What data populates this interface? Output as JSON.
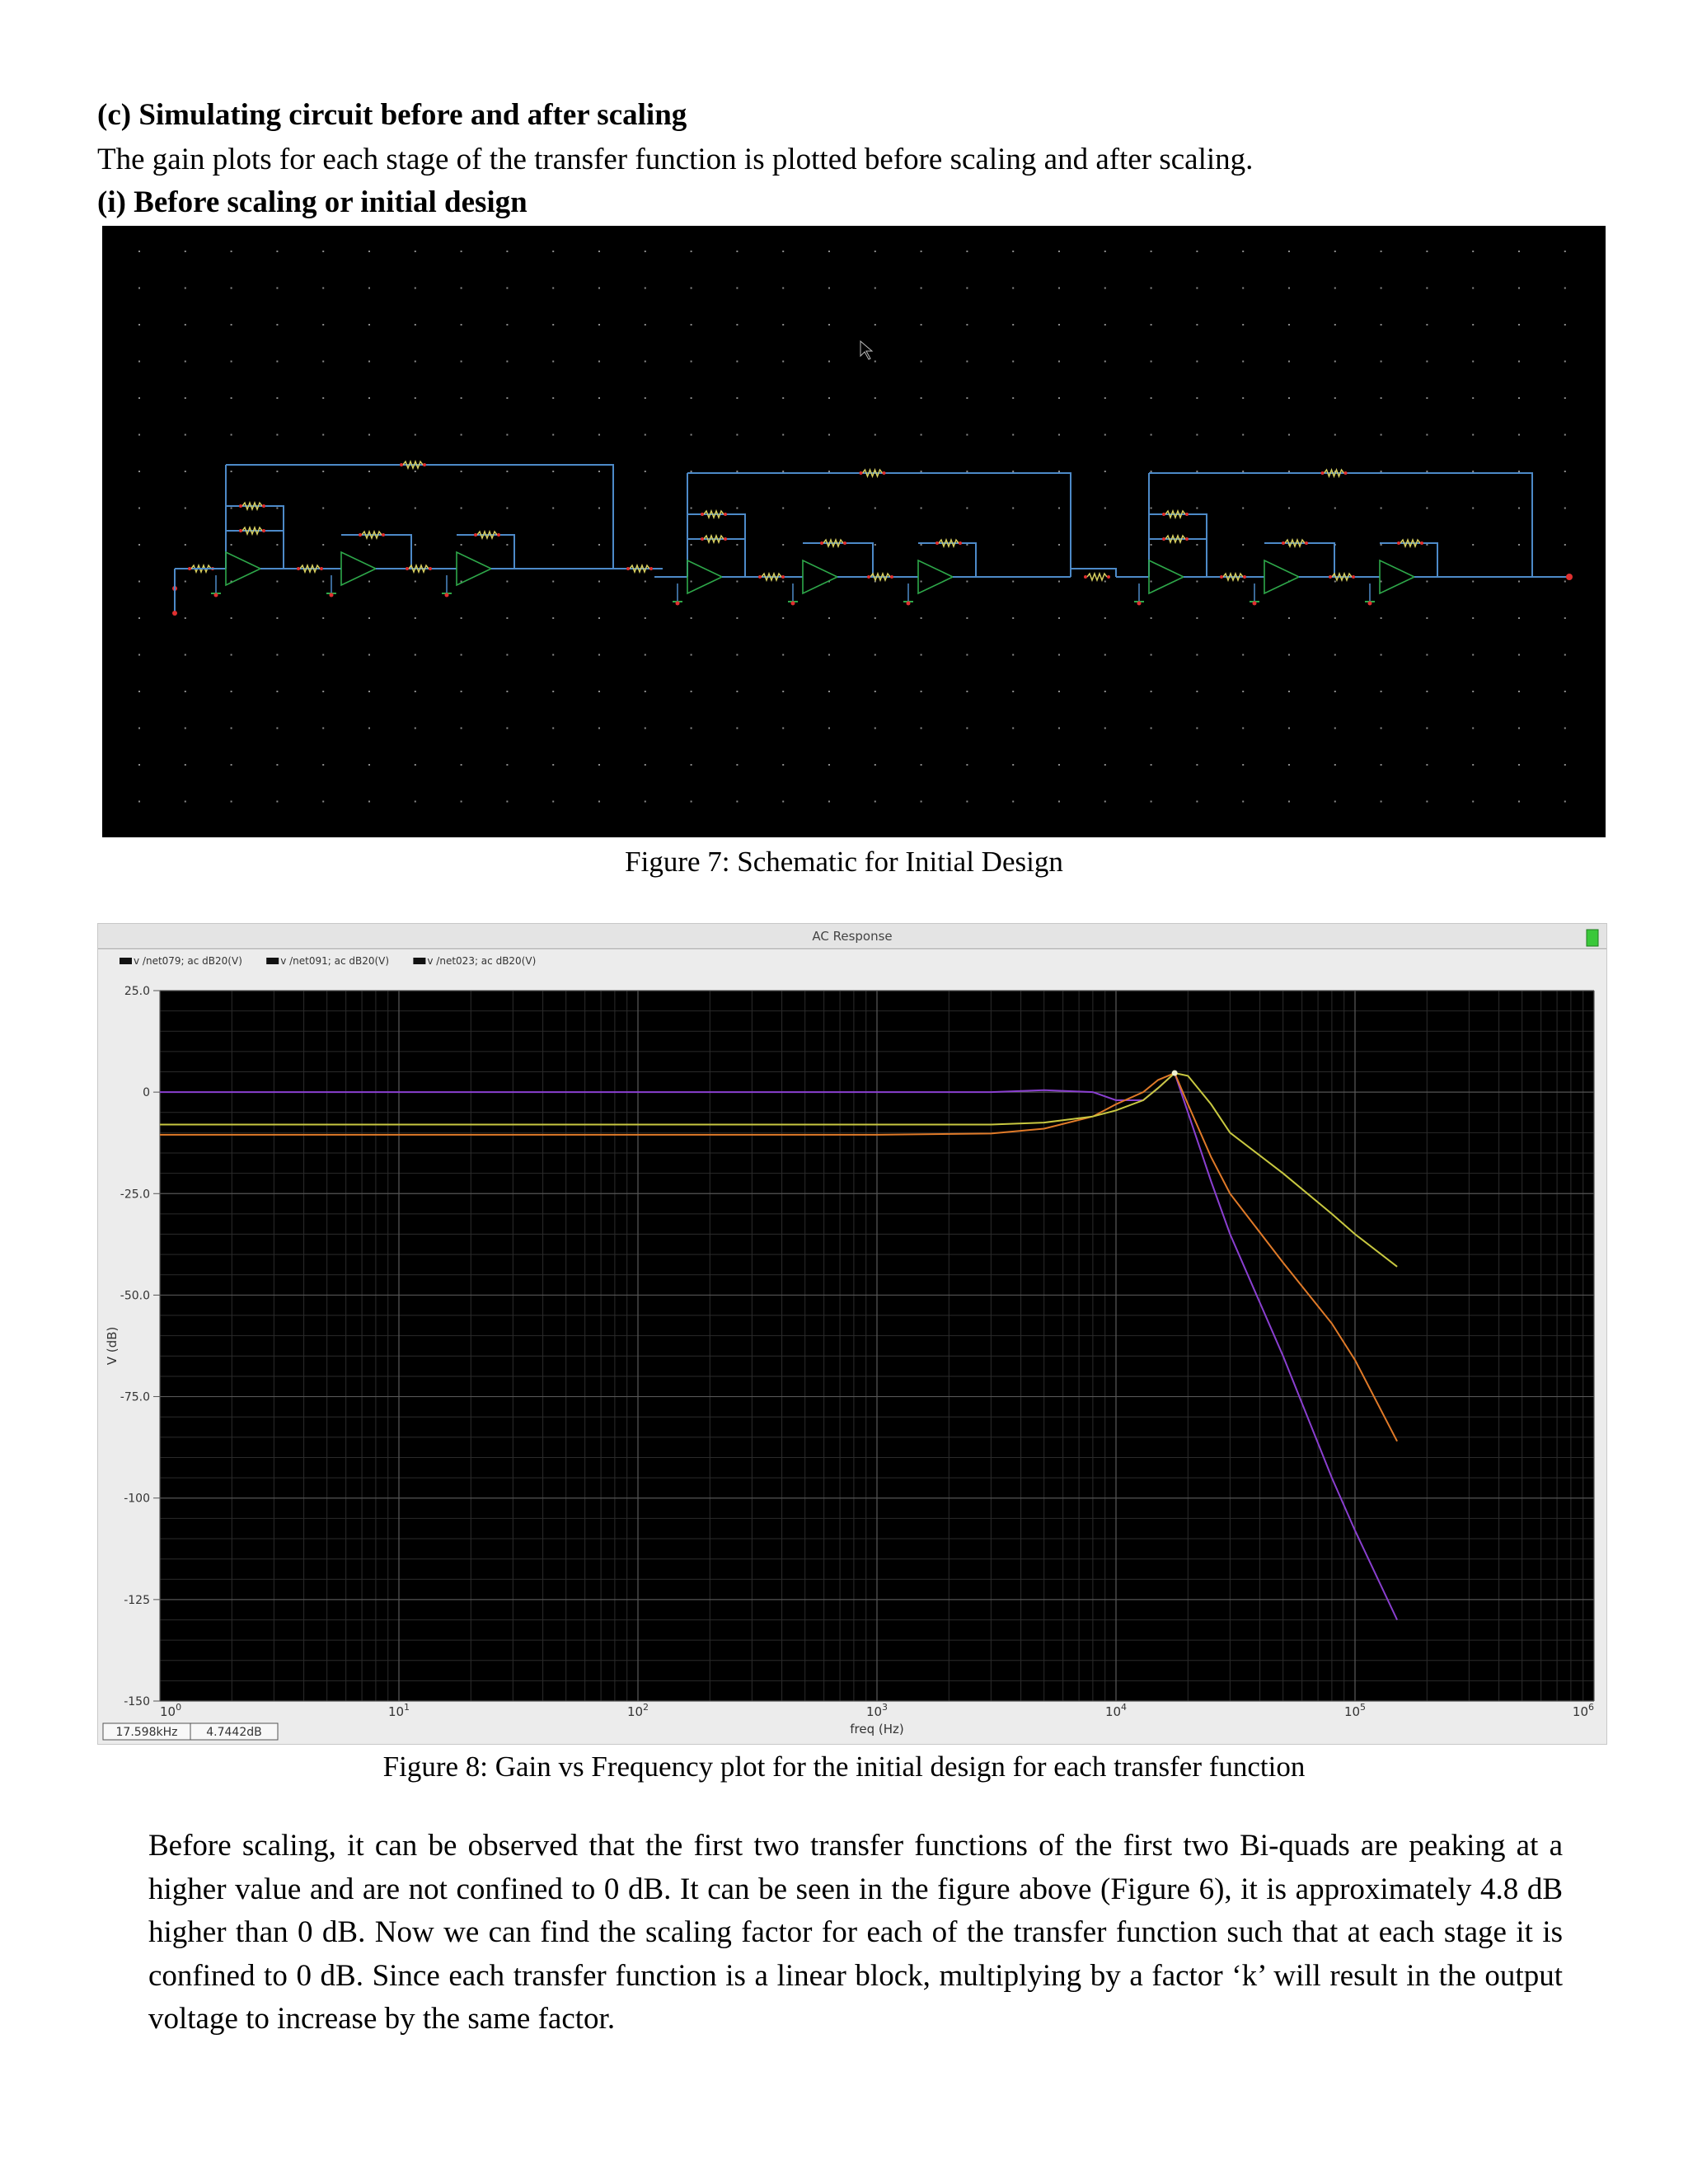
{
  "heading": "(c) Simulating circuit before and after scaling",
  "intro": "The gain plots for each stage of the transfer function is plotted before scaling and after scaling.",
  "subheading": "(i) Before scaling or initial design",
  "figure7_caption": "Figure 7: Schematic for Initial Design",
  "figure8_caption": "Figure 8: Gain vs Frequency plot for the initial design for each transfer function",
  "paragraph": "Before scaling, it can be observed that the first two transfer functions of the first two Bi-quads are peaking at a higher value and are not confined to 0 dB. It can be seen in the figure above (Figure 6), it is approximately 4.8 dB higher than 0 dB. Now we can find the scaling factor for each of the transfer function such that at each stage it is confined to 0 dB. Since each transfer function is a linear block, multiplying by a factor ‘k’ will result in the output voltage to increase by the same factor.",
  "schematic": {
    "background": "#000000",
    "grid_dot_color": "#8a8a8a",
    "wire_color": "#4d8ac8",
    "opamp_color": "#2ea84a",
    "resistor_color": "#d8d060",
    "node_color": "#e03030"
  },
  "chart_data": {
    "type": "line",
    "title": "AC Response",
    "xlabel": "freq (Hz)",
    "ylabel": "V (dB)",
    "xscale": "log",
    "xlim": [
      1,
      1000000
    ],
    "ylim": [
      -150,
      25
    ],
    "yticks": [
      25,
      0,
      -25,
      -50,
      -75,
      -100,
      -125,
      -150
    ],
    "ytick_labels": [
      "25.0",
      "0",
      "-25.0",
      "-50.0",
      "-75.0",
      "-100",
      "-125",
      "-150"
    ],
    "xtick_exponents": [
      "0",
      "1",
      "2",
      "3",
      "4",
      "5",
      "6"
    ],
    "xtick_base": "10",
    "grid": true,
    "legend_position": "top-left",
    "readout": {
      "x": "17.598kHz",
      "y": "4.7442dB"
    },
    "series": [
      {
        "name": "v /net079; ac dB20(V)",
        "color": "#8a3fd0",
        "x": [
          1,
          10,
          100,
          1000,
          3000,
          5000,
          8000,
          10000,
          13000,
          15000,
          17598,
          20000,
          25000,
          30000,
          50000,
          80000,
          100000,
          150000
        ],
        "y": [
          0,
          0,
          0,
          0,
          0,
          0.5,
          0,
          -2,
          -2,
          1,
          4.7,
          -5,
          -22,
          -35,
          -65,
          -95,
          -108,
          -130
        ]
      },
      {
        "name": "v /net091; ac dB20(V)",
        "color": "#e07a28",
        "x": [
          1,
          10,
          100,
          1000,
          3000,
          5000,
          8000,
          10000,
          13000,
          15000,
          17598,
          20000,
          25000,
          30000,
          50000,
          80000,
          100000,
          150000
        ],
        "y": [
          -10.5,
          -10.5,
          -10.5,
          -10.5,
          -10.2,
          -9,
          -6,
          -3,
          0,
          3,
          4.7,
          -3,
          -16,
          -25,
          -42,
          -57,
          -66,
          -86
        ]
      },
      {
        "name": "v /net023; ac dB20(V)",
        "color": "#c8c840",
        "x": [
          1,
          10,
          100,
          1000,
          3000,
          5000,
          8000,
          10000,
          13000,
          15000,
          17598,
          20000,
          25000,
          30000,
          50000,
          80000,
          100000,
          150000
        ],
        "y": [
          -8,
          -8,
          -8,
          -8,
          -8,
          -7.5,
          -6,
          -4.5,
          -2,
          1,
          4.7,
          4,
          -3,
          -10,
          -20,
          -30,
          -35,
          -43
        ]
      }
    ]
  }
}
